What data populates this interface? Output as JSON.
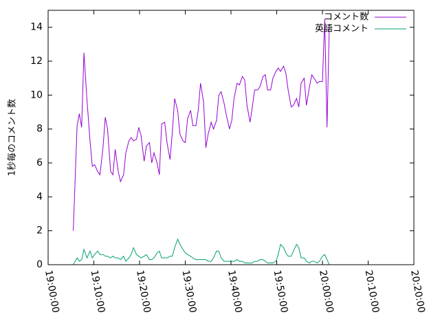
{
  "chart_data": {
    "type": "line",
    "ylabel": "1秒毎のコメント数",
    "ylim": [
      0,
      15
    ],
    "yticks": [
      0,
      2,
      4,
      6,
      8,
      10,
      12,
      14
    ],
    "ytick_labels": [
      "0",
      "2",
      "4",
      "6",
      "8",
      "10",
      "12",
      "14"
    ],
    "xlim": [
      "19:00:00",
      "20:20:00"
    ],
    "xticks": [
      "19:00:00",
      "19:10:00",
      "19:20:00",
      "19:30:00",
      "19:40:00",
      "19:50:00",
      "20:00:00",
      "20:10:00",
      "20:20:00"
    ],
    "grid": false,
    "legend_position": "top-right",
    "series": [
      {
        "name": "コメント数",
        "color": "#9400d3",
        "points": [
          [
            "19:05:30",
            2.0
          ],
          [
            "19:06:20",
            8.2
          ],
          [
            "19:06:50",
            8.9
          ],
          [
            "19:07:20",
            8.1
          ],
          [
            "19:07:50",
            12.5
          ],
          [
            "19:08:30",
            9.7
          ],
          [
            "19:09:10",
            7.3
          ],
          [
            "19:09:40",
            5.8
          ],
          [
            "19:10:10",
            5.9
          ],
          [
            "19:10:50",
            5.5
          ],
          [
            "19:11:20",
            5.3
          ],
          [
            "19:12:00",
            6.9
          ],
          [
            "19:12:30",
            8.7
          ],
          [
            "19:13:00",
            8.0
          ],
          [
            "19:13:40",
            5.5
          ],
          [
            "19:14:10",
            5.3
          ],
          [
            "19:14:40",
            6.8
          ],
          [
            "19:15:20",
            5.5
          ],
          [
            "19:15:50",
            4.9
          ],
          [
            "19:16:30",
            5.3
          ],
          [
            "19:17:00",
            6.6
          ],
          [
            "19:17:40",
            7.3
          ],
          [
            "19:18:10",
            7.5
          ],
          [
            "19:18:40",
            7.3
          ],
          [
            "19:19:20",
            7.4
          ],
          [
            "19:19:50",
            8.1
          ],
          [
            "19:20:20",
            7.6
          ],
          [
            "19:21:00",
            6.1
          ],
          [
            "19:21:30",
            7.0
          ],
          [
            "19:22:10",
            7.2
          ],
          [
            "19:22:40",
            6.0
          ],
          [
            "19:23:10",
            6.6
          ],
          [
            "19:23:50",
            6.0
          ],
          [
            "19:24:20",
            5.3
          ],
          [
            "19:24:50",
            8.3
          ],
          [
            "19:25:30",
            8.4
          ],
          [
            "19:26:00",
            7.2
          ],
          [
            "19:26:40",
            6.2
          ],
          [
            "19:27:10",
            7.8
          ],
          [
            "19:27:40",
            9.8
          ],
          [
            "19:28:20",
            9.1
          ],
          [
            "19:28:50",
            7.7
          ],
          [
            "19:29:30",
            7.3
          ],
          [
            "19:30:00",
            7.2
          ],
          [
            "19:30:30",
            8.6
          ],
          [
            "19:31:10",
            9.1
          ],
          [
            "19:31:40",
            8.2
          ],
          [
            "19:32:20",
            8.2
          ],
          [
            "19:32:50",
            9.1
          ],
          [
            "19:33:20",
            10.7
          ],
          [
            "19:34:00",
            9.6
          ],
          [
            "19:34:30",
            6.9
          ],
          [
            "19:35:00",
            7.7
          ],
          [
            "19:35:40",
            8.4
          ],
          [
            "19:36:10",
            8.0
          ],
          [
            "19:36:50",
            8.5
          ],
          [
            "19:37:20",
            10.0
          ],
          [
            "19:37:50",
            10.2
          ],
          [
            "19:38:30",
            9.5
          ],
          [
            "19:39:00",
            8.8
          ],
          [
            "19:39:40",
            8.0
          ],
          [
            "19:40:10",
            8.5
          ],
          [
            "19:40:40",
            9.8
          ],
          [
            "19:41:20",
            10.7
          ],
          [
            "19:41:50",
            10.6
          ],
          [
            "19:42:30",
            11.1
          ],
          [
            "19:43:00",
            10.9
          ],
          [
            "19:43:30",
            9.4
          ],
          [
            "19:44:10",
            8.4
          ],
          [
            "19:44:40",
            9.3
          ],
          [
            "19:45:10",
            10.3
          ],
          [
            "19:45:50",
            10.3
          ],
          [
            "19:46:20",
            10.5
          ],
          [
            "19:47:00",
            11.1
          ],
          [
            "19:47:30",
            11.2
          ],
          [
            "19:48:00",
            10.3
          ],
          [
            "19:48:40",
            10.3
          ],
          [
            "19:49:10",
            11.0
          ],
          [
            "19:49:50",
            11.4
          ],
          [
            "19:50:20",
            11.6
          ],
          [
            "19:50:50",
            11.4
          ],
          [
            "19:51:30",
            11.7
          ],
          [
            "19:52:00",
            11.3
          ],
          [
            "19:52:30",
            10.3
          ],
          [
            "19:53:10",
            9.3
          ],
          [
            "19:53:40",
            9.4
          ],
          [
            "19:54:20",
            9.8
          ],
          [
            "19:54:50",
            9.3
          ],
          [
            "19:55:20",
            10.7
          ],
          [
            "19:56:00",
            11.0
          ],
          [
            "19:56:30",
            9.4
          ],
          [
            "19:57:10",
            10.5
          ],
          [
            "19:57:40",
            11.2
          ],
          [
            "19:58:10",
            11.0
          ],
          [
            "19:58:50",
            10.7
          ],
          [
            "19:59:20",
            10.8
          ],
          [
            "20:00:00",
            10.8
          ],
          [
            "20:00:30",
            14.5
          ],
          [
            "20:01:00",
            8.1
          ],
          [
            "20:01:30",
            14.0
          ]
        ]
      },
      {
        "name": "英語コメント",
        "color": "#009e73",
        "points": [
          [
            "19:05:30",
            0.0
          ],
          [
            "19:06:20",
            0.4
          ],
          [
            "19:06:50",
            0.2
          ],
          [
            "19:07:20",
            0.3
          ],
          [
            "19:07:50",
            0.9
          ],
          [
            "19:08:30",
            0.4
          ],
          [
            "19:09:10",
            0.8
          ],
          [
            "19:09:40",
            0.4
          ],
          [
            "19:10:10",
            0.6
          ],
          [
            "19:10:50",
            0.8
          ],
          [
            "19:11:20",
            0.6
          ],
          [
            "19:12:00",
            0.6
          ],
          [
            "19:12:30",
            0.5
          ],
          [
            "19:13:00",
            0.5
          ],
          [
            "19:13:40",
            0.4
          ],
          [
            "19:14:10",
            0.5
          ],
          [
            "19:14:40",
            0.4
          ],
          [
            "19:15:20",
            0.4
          ],
          [
            "19:15:50",
            0.3
          ],
          [
            "19:16:30",
            0.5
          ],
          [
            "19:17:00",
            0.2
          ],
          [
            "19:17:40",
            0.4
          ],
          [
            "19:18:10",
            0.6
          ],
          [
            "19:18:40",
            1.0
          ],
          [
            "19:19:20",
            0.6
          ],
          [
            "19:19:50",
            0.5
          ],
          [
            "19:20:20",
            0.4
          ],
          [
            "19:21:00",
            0.5
          ],
          [
            "19:21:30",
            0.6
          ],
          [
            "19:22:10",
            0.3
          ],
          [
            "19:22:40",
            0.3
          ],
          [
            "19:23:10",
            0.4
          ],
          [
            "19:23:50",
            0.7
          ],
          [
            "19:24:20",
            0.8
          ],
          [
            "19:24:50",
            0.4
          ],
          [
            "19:25:30",
            0.4
          ],
          [
            "19:26:00",
            0.4
          ],
          [
            "19:26:40",
            0.5
          ],
          [
            "19:27:10",
            0.5
          ],
          [
            "19:27:40",
            1.0
          ],
          [
            "19:28:20",
            1.5
          ],
          [
            "19:28:50",
            1.2
          ],
          [
            "19:29:30",
            0.9
          ],
          [
            "19:30:00",
            0.7
          ],
          [
            "19:30:30",
            0.6
          ],
          [
            "19:31:10",
            0.5
          ],
          [
            "19:31:40",
            0.4
          ],
          [
            "19:32:20",
            0.3
          ],
          [
            "19:32:50",
            0.3
          ],
          [
            "19:33:20",
            0.3
          ],
          [
            "19:34:00",
            0.3
          ],
          [
            "19:34:30",
            0.3
          ],
          [
            "19:35:00",
            0.2
          ],
          [
            "19:35:40",
            0.2
          ],
          [
            "19:36:10",
            0.4
          ],
          [
            "19:36:50",
            0.8
          ],
          [
            "19:37:20",
            0.8
          ],
          [
            "19:37:50",
            0.4
          ],
          [
            "19:38:30",
            0.2
          ],
          [
            "19:39:00",
            0.2
          ],
          [
            "19:39:40",
            0.2
          ],
          [
            "19:40:10",
            0.2
          ],
          [
            "19:40:40",
            0.2
          ],
          [
            "19:41:20",
            0.3
          ],
          [
            "19:41:50",
            0.2
          ],
          [
            "19:42:30",
            0.2
          ],
          [
            "19:43:00",
            0.1
          ],
          [
            "19:43:30",
            0.1
          ],
          [
            "19:44:10",
            0.1
          ],
          [
            "19:44:40",
            0.1
          ],
          [
            "19:45:10",
            0.2
          ],
          [
            "19:45:50",
            0.2
          ],
          [
            "19:46:20",
            0.3
          ],
          [
            "19:47:00",
            0.3
          ],
          [
            "19:47:30",
            0.2
          ],
          [
            "19:48:00",
            0.1
          ],
          [
            "19:48:40",
            0.1
          ],
          [
            "19:49:10",
            0.1
          ],
          [
            "19:49:50",
            0.2
          ],
          [
            "19:50:20",
            0.6
          ],
          [
            "19:50:50",
            1.2
          ],
          [
            "19:51:30",
            1.0
          ],
          [
            "19:52:00",
            0.7
          ],
          [
            "19:52:30",
            0.5
          ],
          [
            "19:53:10",
            0.5
          ],
          [
            "19:53:40",
            0.8
          ],
          [
            "19:54:20",
            1.2
          ],
          [
            "19:54:50",
            1.0
          ],
          [
            "19:55:20",
            0.4
          ],
          [
            "19:56:00",
            0.4
          ],
          [
            "19:56:30",
            0.2
          ],
          [
            "19:57:10",
            0.1
          ],
          [
            "19:57:40",
            0.2
          ],
          [
            "19:58:10",
            0.2
          ],
          [
            "19:58:50",
            0.1
          ],
          [
            "19:59:20",
            0.2
          ],
          [
            "20:00:00",
            0.5
          ],
          [
            "20:00:30",
            0.6
          ],
          [
            "20:01:00",
            0.3
          ],
          [
            "20:01:30",
            0.0
          ]
        ]
      }
    ]
  }
}
